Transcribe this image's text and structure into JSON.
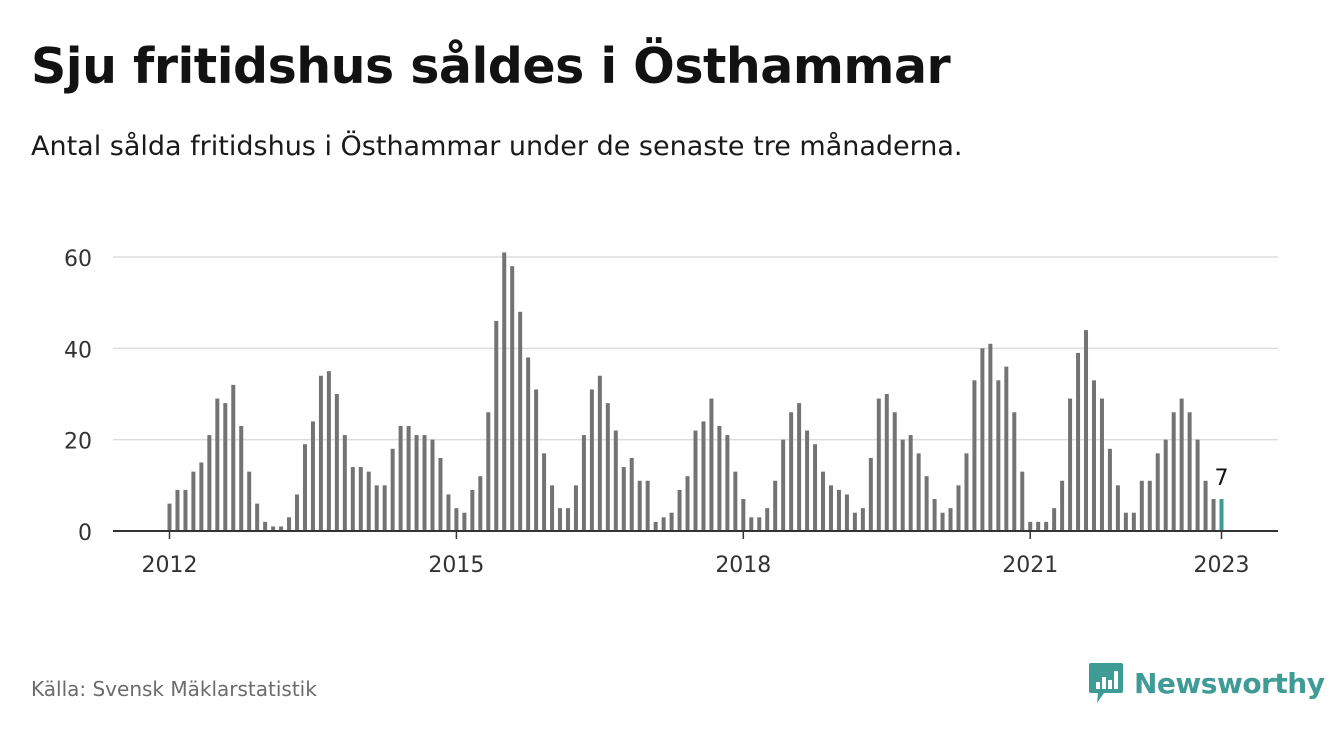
{
  "title": "Sju fritidshus såldes i Östhammar",
  "subtitle": "Antal sålda fritidshus i Östhammar under de senaste tre månaderna.",
  "source": "Källa: Svensk Mäklarstatistik",
  "brand": {
    "name": "Newsworthy",
    "logo_icon": "newsworthy-logo-icon"
  },
  "colors": {
    "bar": "#737373",
    "highlight": "#3f9b96",
    "grid": "#dddddd",
    "axis": "#333333",
    "text": "#333333"
  },
  "chart_data": {
    "type": "bar",
    "title": "Sju fritidshus såldes i Östhammar",
    "subtitle": "Antal sålda fritidshus i Östhammar under de senaste tre månaderna.",
    "x_start": "2012-01",
    "x_end": "2023-01",
    "x_unit": "month",
    "x_ticks": [
      "2012",
      "2015",
      "2018",
      "2021",
      "2023"
    ],
    "y_ticks": [
      0,
      20,
      40,
      60
    ],
    "ylim": [
      0,
      62
    ],
    "grid": true,
    "values": [
      6,
      9,
      9,
      13,
      15,
      21,
      29,
      28,
      32,
      23,
      13,
      6,
      2,
      1,
      1,
      3,
      8,
      19,
      24,
      34,
      35,
      30,
      21,
      14,
      14,
      13,
      10,
      10,
      18,
      23,
      23,
      21,
      21,
      20,
      16,
      8,
      5,
      4,
      9,
      12,
      26,
      46,
      61,
      58,
      48,
      38,
      31,
      17,
      10,
      5,
      5,
      10,
      21,
      31,
      34,
      28,
      22,
      14,
      16,
      11,
      11,
      2,
      3,
      4,
      9,
      12,
      22,
      24,
      29,
      23,
      21,
      13,
      7,
      3,
      3,
      5,
      11,
      20,
      26,
      28,
      22,
      19,
      13,
      10,
      9,
      8,
      4,
      5,
      16,
      29,
      30,
      26,
      20,
      21,
      17,
      12,
      7,
      4,
      5,
      10,
      17,
      33,
      40,
      41,
      33,
      36,
      26,
      13,
      2,
      2,
      2,
      5,
      11,
      29,
      39,
      44,
      33,
      29,
      18,
      10,
      4,
      4,
      11,
      11,
      17,
      20,
      26,
      29,
      26,
      20,
      11,
      7,
      7
    ],
    "highlight_last": true,
    "last_label": "7"
  }
}
